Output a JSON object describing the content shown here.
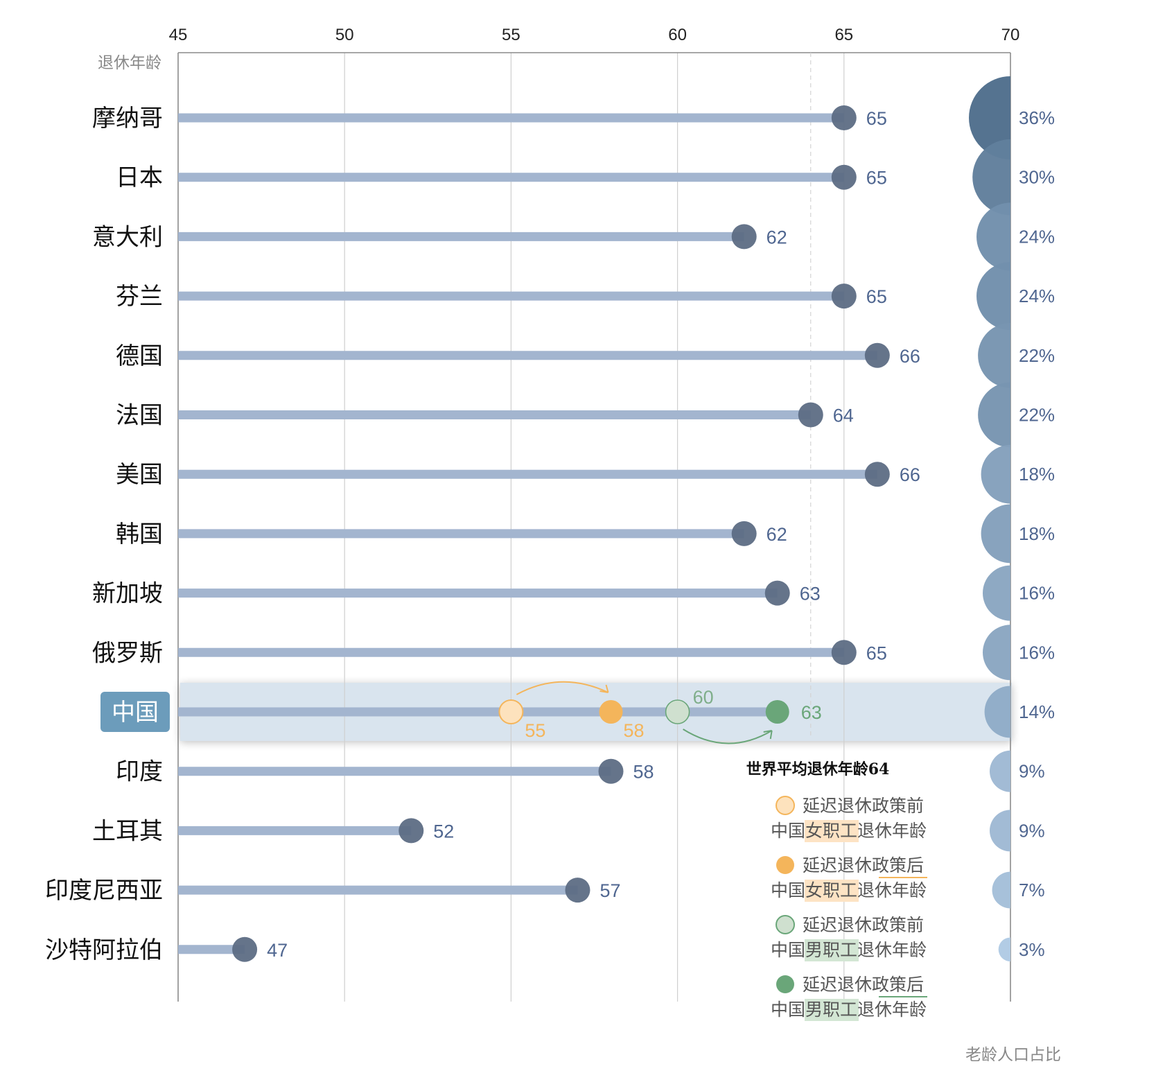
{
  "colors": {
    "stem": "#a3b5cf",
    "dot": "#5d6d84",
    "value_text": "#4f6690",
    "china_band": "#d9e4ee",
    "china_label_bg": "#6c9cbb",
    "female_before": "#fde2bd",
    "female_after": "#f4b55b",
    "male_before": "#cfe0cf",
    "male_after": "#6aa679",
    "bubble_dark": "#4f6e8c",
    "bubble_light": "#b9d2ec"
  },
  "chart_data": {
    "type": "lollipop",
    "x_axis": {
      "range": [
        45,
        70
      ],
      "ticks": [
        "45",
        "50",
        "55",
        "60",
        "65",
        "70"
      ],
      "title": "退休年龄"
    },
    "bubble_axis_title": "老龄人口占比",
    "world_average": {
      "value": 64,
      "label": "世界平均退休年龄64"
    },
    "countries": [
      {
        "name": "摩纳哥",
        "age": 65,
        "age_label": "65",
        "elderly_share": 36,
        "share_label": "36%"
      },
      {
        "name": "日本",
        "age": 65,
        "age_label": "65",
        "elderly_share": 30,
        "share_label": "30%"
      },
      {
        "name": "意大利",
        "age": 62,
        "age_label": "62",
        "elderly_share": 24,
        "share_label": "24%"
      },
      {
        "name": "芬兰",
        "age": 65,
        "age_label": "65",
        "elderly_share": 24,
        "share_label": "24%"
      },
      {
        "name": "德国",
        "age": 66,
        "age_label": "66",
        "elderly_share": 22,
        "share_label": "22%"
      },
      {
        "name": "法国",
        "age": 64,
        "age_label": "64",
        "elderly_share": 22,
        "share_label": "22%"
      },
      {
        "name": "美国",
        "age": 66,
        "age_label": "66",
        "elderly_share": 18,
        "share_label": "18%"
      },
      {
        "name": "韩国",
        "age": 62,
        "age_label": "62",
        "elderly_share": 18,
        "share_label": "18%"
      },
      {
        "name": "新加坡",
        "age": 63,
        "age_label": "63",
        "elderly_share": 16,
        "share_label": "16%"
      },
      {
        "name": "俄罗斯",
        "age": 65,
        "age_label": "65",
        "elderly_share": 16,
        "share_label": "16%"
      },
      {
        "name": "中国",
        "age": 63,
        "elderly_share": 14,
        "share_label": "14%",
        "highlight": true,
        "female_before": 55,
        "female_before_label": "55",
        "female_after": 58,
        "female_after_label": "58",
        "male_before": 60,
        "male_before_label": "60",
        "male_after": 63,
        "male_after_label": "63"
      },
      {
        "name": "印度",
        "age": 58,
        "age_label": "58",
        "elderly_share": 9,
        "share_label": "9%"
      },
      {
        "name": "土耳其",
        "age": 52,
        "age_label": "52",
        "elderly_share": 9,
        "share_label": "9%"
      },
      {
        "name": "印度尼西亚",
        "age": 57,
        "age_label": "57",
        "elderly_share": 7,
        "share_label": "7%"
      },
      {
        "name": "沙特阿拉伯",
        "age": 47,
        "age_label": "47",
        "elderly_share": 3,
        "share_label": "3%"
      }
    ]
  },
  "legend": [
    {
      "key": "female_before",
      "line1": "延迟退休政策前",
      "line2_prefix": "中国",
      "line2_highlight": "女职工",
      "line2_suffix": "退休年龄",
      "underline": false
    },
    {
      "key": "female_after",
      "line1": "延迟退休政策后",
      "line2_prefix": "中国",
      "line2_highlight": "女职工",
      "line2_suffix": "退休年龄",
      "underline": true
    },
    {
      "key": "male_before",
      "line1": "延迟退休政策前",
      "line2_prefix": "中国",
      "line2_highlight": "男职工",
      "line2_suffix": "退休年龄",
      "underline": false
    },
    {
      "key": "male_after",
      "line1": "延迟退休政策后",
      "line2_prefix": "中国",
      "line2_highlight": "男职工",
      "line2_suffix": "退休年龄",
      "underline": true
    }
  ]
}
